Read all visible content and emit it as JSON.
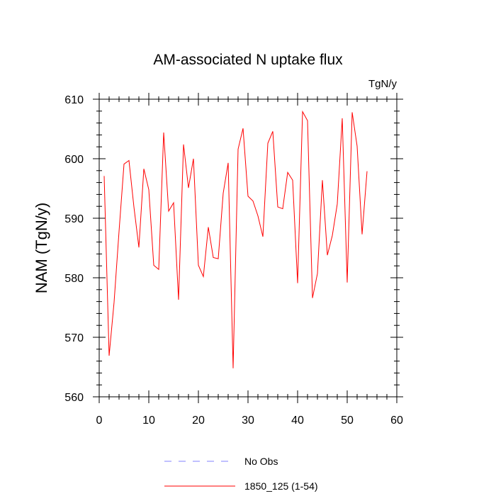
{
  "chart_data": {
    "type": "line",
    "title": "AM-associated N uptake flux",
    "units": "TgN/y",
    "xlabel": "",
    "ylabel": "NAM  (TgN/y)",
    "xlim": [
      0,
      60
    ],
    "ylim": [
      560,
      610
    ],
    "x_ticks": [
      0,
      10,
      20,
      30,
      40,
      50,
      60
    ],
    "y_ticks": [
      560,
      570,
      580,
      590,
      600,
      610
    ],
    "x_minor_step": 2,
    "y_minor_step": 2,
    "grid": false,
    "legend_position": "bottom",
    "series": [
      {
        "name": "No Obs",
        "color": "#8080ff",
        "dash": "dashed",
        "x": [],
        "values": []
      },
      {
        "name": "1850_125 (1-54)",
        "color": "#ff0000",
        "dash": "solid",
        "x": [
          1,
          2,
          3,
          4,
          5,
          6,
          7,
          8,
          9,
          10,
          11,
          12,
          13,
          14,
          15,
          16,
          17,
          18,
          19,
          20,
          21,
          22,
          23,
          24,
          25,
          26,
          27,
          28,
          29,
          30,
          31,
          32,
          33,
          34,
          35,
          36,
          37,
          38,
          39,
          40,
          41,
          42,
          43,
          44,
          45,
          46,
          47,
          48,
          49,
          50,
          51,
          52,
          53,
          54
        ],
        "values": [
          597.1,
          566.9,
          575.9,
          587.8,
          599.1,
          599.7,
          591.9,
          585.1,
          598.3,
          594.8,
          582.1,
          581.4,
          604.4,
          591.2,
          592.6,
          576.3,
          602.4,
          595.1,
          600.0,
          582.1,
          580.2,
          588.5,
          583.4,
          583.2,
          594.2,
          599.3,
          564.8,
          601.6,
          605.1,
          593.7,
          592.9,
          590.4,
          586.9,
          602.6,
          604.6,
          591.9,
          591.6,
          597.7,
          596.4,
          579.1,
          607.9,
          606.4,
          576.6,
          580.7,
          596.4,
          583.8,
          587.1,
          592.4,
          606.8,
          579.2,
          607.8,
          602.1,
          587.3,
          597.9
        ]
      }
    ]
  }
}
